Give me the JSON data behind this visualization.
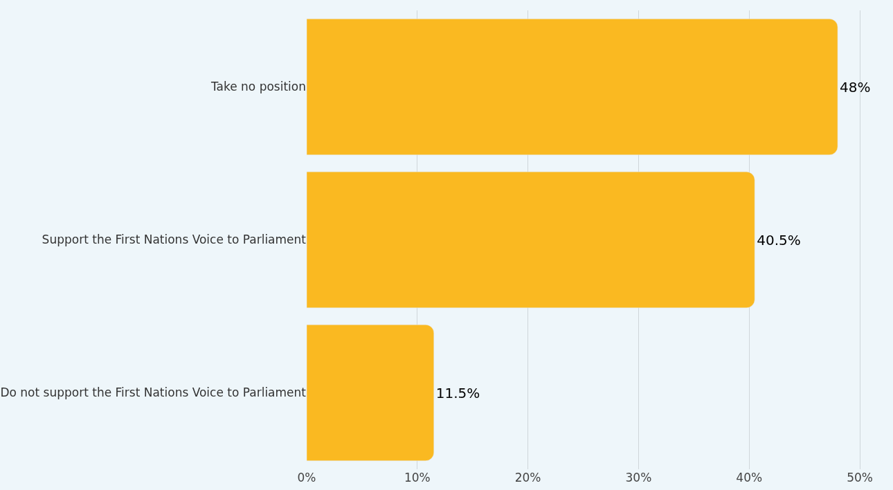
{
  "chart_data": {
    "type": "bar",
    "orientation": "horizontal",
    "categories": [
      "Take no position",
      "Support the First Nations Voice to Parliament",
      "Do not support the First Nations Voice to Parliament"
    ],
    "values": [
      48,
      40.5,
      11.5
    ],
    "value_labels": [
      "48%",
      "40.5%",
      "11.5%"
    ],
    "color": "#fab921",
    "xlim": [
      0,
      53
    ],
    "xticks": [
      {
        "value": 0,
        "label": "0%"
      },
      {
        "value": 10,
        "label": "10%"
      },
      {
        "value": 20,
        "label": "20%"
      },
      {
        "value": 30,
        "label": "30%"
      },
      {
        "value": 40,
        "label": "40%"
      },
      {
        "value": 50,
        "label": "50%"
      }
    ],
    "grid": "x"
  }
}
